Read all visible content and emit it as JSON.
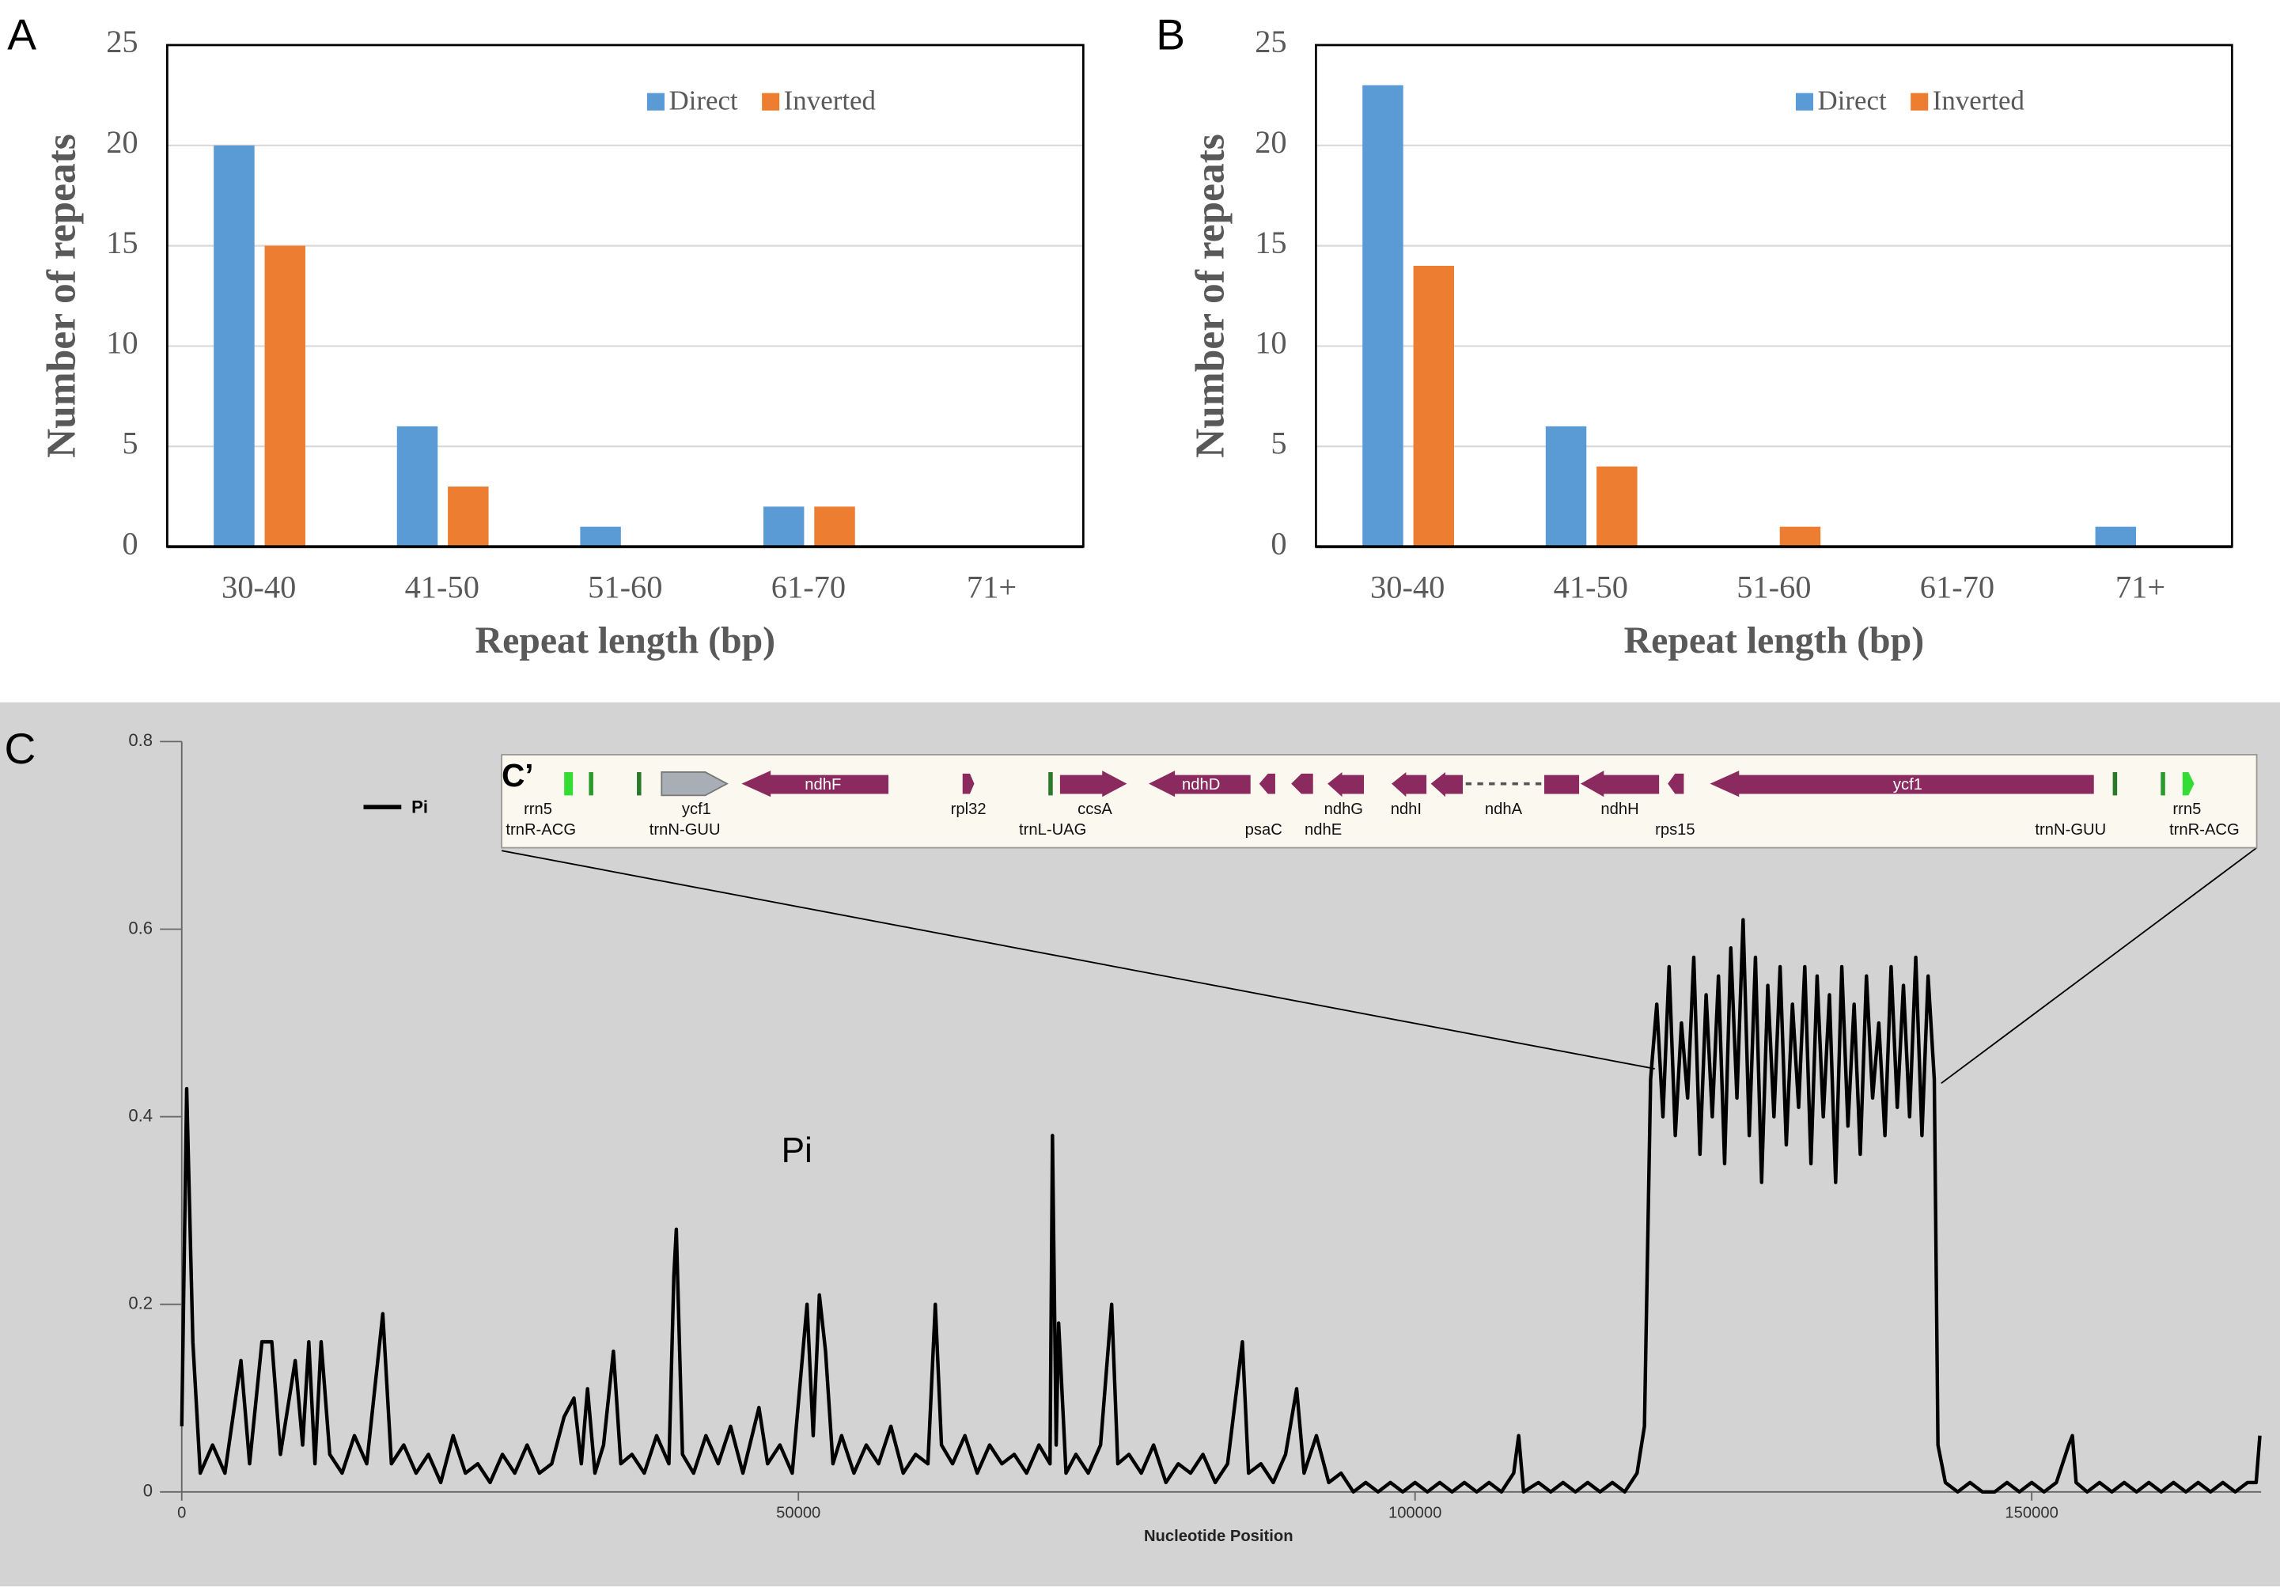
{
  "chart_data": [
    {
      "type": "bar",
      "panel_label": "A",
      "xlabel": "Repeat length (bp)",
      "ylabel": "Number of repeats",
      "categories": [
        "30-40",
        "41-50",
        "51-60",
        "61-70",
        "71+"
      ],
      "series": [
        {
          "name": "Direct",
          "color": "#5b9bd5",
          "values": [
            20,
            6,
            1,
            2,
            0
          ]
        },
        {
          "name": "Inverted",
          "color": "#ed7d31",
          "values": [
            15,
            3,
            0,
            2,
            0
          ]
        }
      ],
      "ylim": [
        0,
        25
      ],
      "yticks": [
        0,
        5,
        10,
        15,
        20,
        25
      ],
      "grid": true,
      "legend": "top-right"
    },
    {
      "type": "bar",
      "panel_label": "B",
      "xlabel": "Repeat length (bp)",
      "ylabel": "Number of repeats",
      "categories": [
        "30-40",
        "41-50",
        "51-60",
        "61-70",
        "71+"
      ],
      "series": [
        {
          "name": "Direct",
          "color": "#5b9bd5",
          "values": [
            23,
            6,
            0,
            0,
            1
          ]
        },
        {
          "name": "Inverted",
          "color": "#ed7d31",
          "values": [
            14,
            4,
            1,
            0,
            0
          ]
        }
      ],
      "ylim": [
        0,
        25
      ],
      "yticks": [
        0,
        5,
        10,
        15,
        20,
        25
      ],
      "grid": true,
      "legend": "top-right"
    },
    {
      "type": "line",
      "panel_label": "C",
      "xlabel": "Nucleotide Position",
      "annotation": "Pi",
      "x": [
        0,
        400,
        900,
        1500,
        2500,
        3500,
        4800,
        5500,
        6500,
        7300,
        8000,
        9200,
        9800,
        10300,
        10800,
        11300,
        12000,
        13000,
        14000,
        15000,
        16300,
        17000,
        18000,
        19000,
        20000,
        21000,
        22000,
        23000,
        24000,
        25000,
        26000,
        27000,
        28000,
        29000,
        30000,
        31000,
        31800,
        32400,
        32900,
        33500,
        34200,
        35000,
        35600,
        36500,
        37500,
        38500,
        39500,
        39900,
        40100,
        40600,
        41500,
        42500,
        43500,
        44500,
        45500,
        46800,
        47500,
        48500,
        49500,
        50700,
        51200,
        51700,
        52200,
        52800,
        53500,
        54500,
        55500,
        56500,
        57500,
        58500,
        59500,
        60500,
        61100,
        61600,
        62500,
        63500,
        64500,
        65500,
        66500,
        67500,
        68500,
        69500,
        70400,
        70600,
        70900,
        71100,
        71700,
        72500,
        73500,
        74500,
        75400,
        75900,
        76800,
        77800,
        78800,
        79800,
        80800,
        81800,
        82800,
        83800,
        84800,
        86000,
        86500,
        87500,
        88500,
        89500,
        90400,
        91000,
        92000,
        93000,
        94000,
        95000,
        96000,
        97000,
        98000,
        99000,
        100000,
        101000,
        102000,
        103000,
        104000,
        105000,
        106000,
        107000,
        108000,
        108400,
        108800,
        110000,
        111000,
        112000,
        113000,
        114000,
        115000,
        116000,
        117000,
        118000,
        118600,
        119100,
        119600,
        120100,
        120600,
        121100,
        121600,
        122100,
        122600,
        123100,
        123600,
        124100,
        124600,
        125100,
        125600,
        126100,
        126600,
        127100,
        127600,
        128100,
        128600,
        129100,
        129600,
        130100,
        130600,
        131100,
        131600,
        132100,
        132600,
        133100,
        133600,
        134100,
        134600,
        135100,
        135600,
        136100,
        136600,
        137100,
        137600,
        138100,
        138600,
        139100,
        139600,
        140100,
        140600,
        141100,
        141600,
        142100,
        142400,
        143000,
        144000,
        145000,
        146000,
        147000,
        148000,
        149000,
        150000,
        151000,
        152000,
        153000,
        153300,
        153600,
        154500,
        155500,
        156500,
        157500,
        158500,
        159500,
        160500,
        161500,
        162500,
        163500,
        164500,
        165500,
        166500,
        167500,
        168200,
        168500
      ],
      "series": [
        {
          "name": "Pi",
          "color": "#000000",
          "values": [
            0.07,
            0.43,
            0.16,
            0.02,
            0.05,
            0.02,
            0.14,
            0.03,
            0.16,
            0.16,
            0.04,
            0.14,
            0.05,
            0.16,
            0.03,
            0.16,
            0.04,
            0.02,
            0.06,
            0.03,
            0.19,
            0.03,
            0.05,
            0.02,
            0.04,
            0.01,
            0.06,
            0.02,
            0.03,
            0.01,
            0.04,
            0.02,
            0.05,
            0.02,
            0.03,
            0.08,
            0.1,
            0.03,
            0.11,
            0.02,
            0.05,
            0.15,
            0.03,
            0.04,
            0.02,
            0.06,
            0.03,
            0.23,
            0.28,
            0.04,
            0.02,
            0.06,
            0.03,
            0.07,
            0.02,
            0.09,
            0.03,
            0.05,
            0.02,
            0.2,
            0.06,
            0.21,
            0.15,
            0.03,
            0.06,
            0.02,
            0.05,
            0.03,
            0.07,
            0.02,
            0.04,
            0.03,
            0.2,
            0.05,
            0.03,
            0.06,
            0.02,
            0.05,
            0.03,
            0.04,
            0.02,
            0.05,
            0.03,
            0.38,
            0.05,
            0.18,
            0.02,
            0.04,
            0.02,
            0.05,
            0.2,
            0.03,
            0.04,
            0.02,
            0.05,
            0.01,
            0.03,
            0.02,
            0.04,
            0.01,
            0.03,
            0.16,
            0.02,
            0.03,
            0.01,
            0.04,
            0.11,
            0.02,
            0.06,
            0.01,
            0.02,
            0,
            0.01,
            0,
            0.01,
            0,
            0.01,
            0,
            0.01,
            0,
            0.01,
            0,
            0.01,
            0,
            0.02,
            0.06,
            0,
            0.01,
            0,
            0.01,
            0,
            0.01,
            0,
            0.01,
            0,
            0.02,
            0.07,
            0.44,
            0.52,
            0.4,
            0.56,
            0.38,
            0.5,
            0.42,
            0.57,
            0.36,
            0.53,
            0.4,
            0.55,
            0.35,
            0.58,
            0.42,
            0.61,
            0.38,
            0.57,
            0.33,
            0.54,
            0.4,
            0.56,
            0.37,
            0.52,
            0.41,
            0.56,
            0.35,
            0.55,
            0.4,
            0.53,
            0.33,
            0.56,
            0.39,
            0.52,
            0.36,
            0.55,
            0.42,
            0.5,
            0.38,
            0.56,
            0.41,
            0.54,
            0.4,
            0.57,
            0.38,
            0.55,
            0.44,
            0.05,
            0.01,
            0,
            0.01,
            0,
            0,
            0.01,
            0,
            0.01,
            0,
            0.01,
            0.05,
            0.06,
            0.01,
            0,
            0.01,
            0,
            0.01,
            0,
            0.01,
            0,
            0.01,
            0,
            0.01,
            0,
            0.01,
            0,
            0.01,
            0.01,
            0.06
          ]
        }
      ],
      "xlim": [
        0,
        168600
      ],
      "xticks": [
        0,
        50000,
        100000,
        150000
      ],
      "ylim": [
        0,
        0.8
      ],
      "yticks": [
        0,
        0.2,
        0.4,
        0.6,
        0.8
      ],
      "legend": "top-left",
      "inset": {
        "label": "C’",
        "genes": [
          "rrn5",
          "trnR-ACG",
          "trnN-GUU",
          "ycf1",
          "ndhF",
          "rpl32",
          "trnL-UAG",
          "ccsA",
          "ndhD",
          "psaC",
          "ndhG",
          "ndhE",
          "ndhI",
          "ndhA",
          "ndhH",
          "rps15",
          "ycf1",
          "trnN-GUU",
          "rrn5",
          "trnR-ACG"
        ]
      }
    }
  ]
}
